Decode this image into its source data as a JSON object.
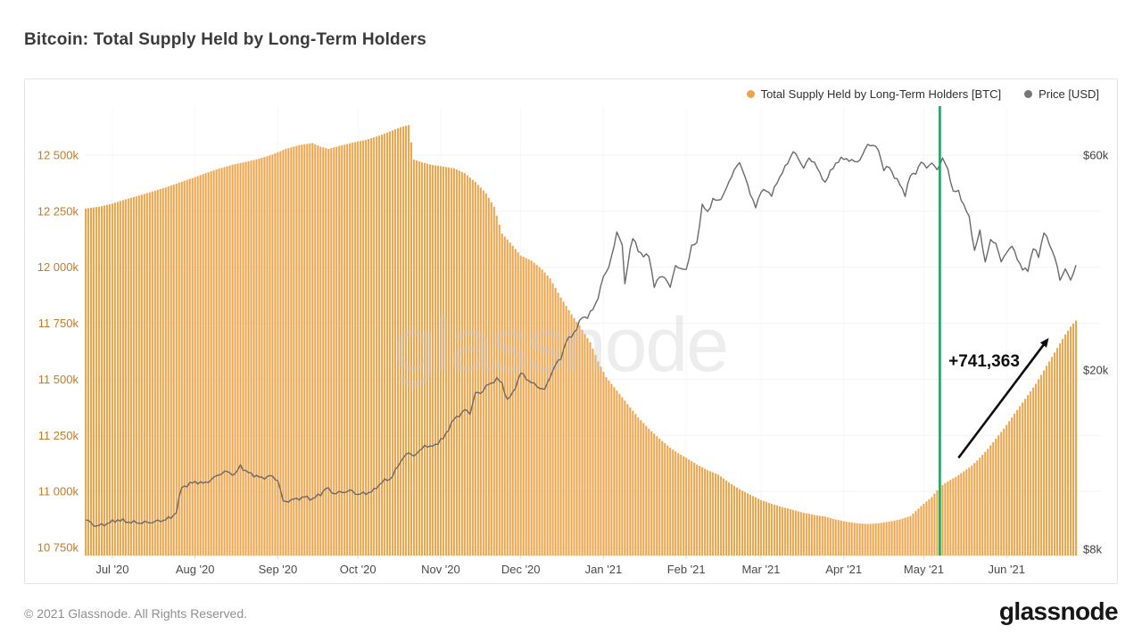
{
  "page": {
    "title": "Bitcoin: Total Supply Held by Long-Term Holders",
    "watermark": "glassnode",
    "footer_copyright": "© 2021 Glassnode. All Rights Reserved.",
    "brand_logo": "glassnode"
  },
  "chart_data": {
    "type": "bar",
    "title": "Bitcoin: Total Supply Held by Long-Term Holders",
    "legend_position": "top-right",
    "grid": "horizontal-faint",
    "x_axis": {
      "unit": "date",
      "total_days": 371,
      "tick_labels": [
        "Jul '20",
        "Aug '20",
        "Sep '20",
        "Oct '20",
        "Nov '20",
        "Dec '20",
        "Jan '21",
        "Feb '21",
        "Mar '21",
        "Apr '21",
        "May '21",
        "Jun '21"
      ],
      "tick_days": [
        10,
        41,
        72,
        102,
        133,
        163,
        194,
        225,
        253,
        284,
        314,
        345
      ]
    },
    "left_axis": {
      "title": "Total Supply Held by Long-Term Holders [BTC]",
      "tick_labels": [
        "12 500k",
        "12 250k",
        "12 000k",
        "11 750k",
        "11 500k",
        "11 250k",
        "11 000k",
        "10 750k"
      ],
      "tick_values": [
        12500,
        12250,
        12000,
        11750,
        11500,
        11250,
        11000,
        10750
      ],
      "units": "thousand BTC",
      "text_color": "#c07c2a"
    },
    "right_axis": {
      "title": "Price [USD]",
      "scale": "log",
      "tick_labels": [
        "$60k",
        "$20k",
        "$8k"
      ],
      "tick_values": [
        60,
        20,
        8
      ],
      "units": "thousand USD",
      "text_color": "#3f3f3f"
    },
    "series": [
      {
        "name": "Total Supply Held by Long-Term Holders [BTC]",
        "type": "bar",
        "axis": "left",
        "color": "#ecа64e",
        "color_hex": "#eca64e",
        "points_day_valueK": [
          [
            0,
            12262
          ],
          [
            5,
            12270
          ],
          [
            10,
            12284
          ],
          [
            15,
            12303
          ],
          [
            20,
            12320
          ],
          [
            25,
            12338
          ],
          [
            30,
            12356
          ],
          [
            35,
            12377
          ],
          [
            40,
            12398
          ],
          [
            45,
            12420
          ],
          [
            50,
            12440
          ],
          [
            55,
            12457
          ],
          [
            60,
            12470
          ],
          [
            65,
            12484
          ],
          [
            70,
            12503
          ],
          [
            75,
            12528
          ],
          [
            80,
            12545
          ],
          [
            85,
            12554
          ],
          [
            88,
            12538
          ],
          [
            91,
            12528
          ],
          [
            95,
            12541
          ],
          [
            100,
            12556
          ],
          [
            105,
            12568
          ],
          [
            110,
            12587
          ],
          [
            115,
            12610
          ],
          [
            118,
            12625
          ],
          [
            121,
            12634
          ],
          [
            123,
            12480
          ],
          [
            126,
            12468
          ],
          [
            130,
            12456
          ],
          [
            134,
            12449
          ],
          [
            138,
            12441
          ],
          [
            142,
            12420
          ],
          [
            146,
            12380
          ],
          [
            150,
            12330
          ],
          [
            153,
            12270
          ],
          [
            156,
            12150
          ],
          [
            159,
            12110
          ],
          [
            163,
            12052
          ],
          [
            167,
            12030
          ],
          [
            171,
            11990
          ],
          [
            174,
            11950
          ],
          [
            178,
            11865
          ],
          [
            182,
            11790
          ],
          [
            185,
            11740
          ],
          [
            189,
            11665
          ],
          [
            192,
            11580
          ],
          [
            195,
            11510
          ],
          [
            199,
            11450
          ],
          [
            203,
            11390
          ],
          [
            207,
            11330
          ],
          [
            211,
            11280
          ],
          [
            215,
            11235
          ],
          [
            219,
            11195
          ],
          [
            222,
            11170
          ],
          [
            225,
            11150
          ],
          [
            229,
            11120
          ],
          [
            233,
            11095
          ],
          [
            237,
            11075
          ],
          [
            241,
            11040
          ],
          [
            245,
            11010
          ],
          [
            249,
            10985
          ],
          [
            253,
            10962
          ],
          [
            257,
            10945
          ],
          [
            261,
            10930
          ],
          [
            265,
            10918
          ],
          [
            269,
            10905
          ],
          [
            273,
            10895
          ],
          [
            277,
            10888
          ],
          [
            281,
            10875
          ],
          [
            285,
            10865
          ],
          [
            289,
            10858
          ],
          [
            293,
            10855
          ],
          [
            297,
            10858
          ],
          [
            301,
            10865
          ],
          [
            305,
            10875
          ],
          [
            309,
            10890
          ],
          [
            313,
            10935
          ],
          [
            317,
            10975
          ],
          [
            320,
            11020
          ],
          [
            323,
            11045
          ],
          [
            326,
            11065
          ],
          [
            329,
            11090
          ],
          [
            332,
            11115
          ],
          [
            335,
            11150
          ],
          [
            338,
            11190
          ],
          [
            341,
            11235
          ],
          [
            344,
            11280
          ],
          [
            347,
            11330
          ],
          [
            350,
            11380
          ],
          [
            353,
            11430
          ],
          [
            356,
            11480
          ],
          [
            359,
            11540
          ],
          [
            362,
            11600
          ],
          [
            365,
            11660
          ],
          [
            367,
            11700
          ],
          [
            369,
            11735
          ],
          [
            371,
            11762
          ]
        ]
      },
      {
        "name": "Price [USD]",
        "type": "line",
        "axis": "right",
        "color_hex": "#6a6a6a",
        "points_day_priceK": [
          [
            0,
            9.3
          ],
          [
            4,
            9.0
          ],
          [
            8,
            9.12
          ],
          [
            12,
            9.3
          ],
          [
            16,
            9.2
          ],
          [
            20,
            9.16
          ],
          [
            24,
            9.18
          ],
          [
            28,
            9.25
          ],
          [
            32,
            9.4
          ],
          [
            34,
            9.7
          ],
          [
            36,
            11.0
          ],
          [
            38,
            11.1
          ],
          [
            41,
            11.3
          ],
          [
            44,
            11.2
          ],
          [
            47,
            11.4
          ],
          [
            50,
            11.75
          ],
          [
            53,
            11.9
          ],
          [
            56,
            11.7
          ],
          [
            58,
            12.3
          ],
          [
            60,
            11.9
          ],
          [
            63,
            11.7
          ],
          [
            66,
            11.5
          ],
          [
            69,
            11.65
          ],
          [
            72,
            11.4
          ],
          [
            74,
            10.2
          ],
          [
            76,
            10.25
          ],
          [
            79,
            10.35
          ],
          [
            82,
            10.45
          ],
          [
            85,
            10.35
          ],
          [
            88,
            10.6
          ],
          [
            90,
            10.95
          ],
          [
            93,
            10.65
          ],
          [
            96,
            10.7
          ],
          [
            99,
            10.8
          ],
          [
            102,
            10.6
          ],
          [
            105,
            10.65
          ],
          [
            108,
            10.8
          ],
          [
            111,
            11.3
          ],
          [
            114,
            11.45
          ],
          [
            117,
            12.2
          ],
          [
            119,
            12.85
          ],
          [
            121,
            13.05
          ],
          [
            123,
            12.95
          ],
          [
            125,
            13.15
          ],
          [
            127,
            13.65
          ],
          [
            129,
            13.45
          ],
          [
            132,
            13.8
          ],
          [
            134,
            14.1
          ],
          [
            136,
            14.85
          ],
          [
            138,
            15.55
          ],
          [
            140,
            15.9
          ],
          [
            142,
            16.3
          ],
          [
            144,
            16.05
          ],
          [
            146,
            17.75
          ],
          [
            148,
            17.8
          ],
          [
            150,
            18.4
          ],
          [
            152,
            18.7
          ],
          [
            154,
            19.15
          ],
          [
            156,
            18.65
          ],
          [
            158,
            17.15
          ],
          [
            160,
            17.75
          ],
          [
            163,
            19.7
          ],
          [
            165,
            19.2
          ],
          [
            167,
            18.75
          ],
          [
            170,
            18.3
          ],
          [
            172,
            18.05
          ],
          [
            174,
            19.4
          ],
          [
            176,
            20.5
          ],
          [
            178,
            21.3
          ],
          [
            180,
            23.1
          ],
          [
            182,
            23.85
          ],
          [
            184,
            24.7
          ],
          [
            186,
            26.3
          ],
          [
            188,
            26.2
          ],
          [
            190,
            27.3
          ],
          [
            192,
            29.0
          ],
          [
            194,
            32.2
          ],
          [
            196,
            34.0
          ],
          [
            198,
            37.5
          ],
          [
            199,
            40.7
          ],
          [
            201,
            38.0
          ],
          [
            202,
            30.8
          ],
          [
            204,
            37.3
          ],
          [
            205,
            39.4
          ],
          [
            207,
            36.8
          ],
          [
            209,
            36.0
          ],
          [
            211,
            35.8
          ],
          [
            213,
            30.8
          ],
          [
            215,
            32.1
          ],
          [
            217,
            32.3
          ],
          [
            219,
            30.4
          ],
          [
            221,
            34.3
          ],
          [
            223,
            33.4
          ],
          [
            225,
            33.5
          ],
          [
            227,
            37.6
          ],
          [
            229,
            38.3
          ],
          [
            231,
            46.4
          ],
          [
            233,
            44.8
          ],
          [
            235,
            47.9
          ],
          [
            237,
            47.4
          ],
          [
            239,
            49.2
          ],
          [
            241,
            52.1
          ],
          [
            243,
            55.9
          ],
          [
            245,
            57.5
          ],
          [
            247,
            54.1
          ],
          [
            249,
            48.9
          ],
          [
            251,
            46.3
          ],
          [
            253,
            49.6
          ],
          [
            255,
            50.4
          ],
          [
            257,
            48.7
          ],
          [
            259,
            52.4
          ],
          [
            261,
            54.9
          ],
          [
            263,
            57.8
          ],
          [
            265,
            61.2
          ],
          [
            267,
            59.0
          ],
          [
            269,
            56.3
          ],
          [
            271,
            58.9
          ],
          [
            273,
            58.0
          ],
          [
            275,
            54.5
          ],
          [
            277,
            52.3
          ],
          [
            279,
            55.0
          ],
          [
            281,
            57.6
          ],
          [
            283,
            58.8
          ],
          [
            285,
            59.0
          ],
          [
            287,
            58.2
          ],
          [
            289,
            58.0
          ],
          [
            291,
            59.8
          ],
          [
            293,
            63.5
          ],
          [
            295,
            63.1
          ],
          [
            297,
            61.6
          ],
          [
            299,
            55.7
          ],
          [
            301,
            56.5
          ],
          [
            303,
            53.8
          ],
          [
            305,
            51.7
          ],
          [
            307,
            49.1
          ],
          [
            309,
            54.0
          ],
          [
            311,
            55.0
          ],
          [
            313,
            57.8
          ],
          [
            315,
            56.6
          ],
          [
            317,
            57.4
          ],
          [
            319,
            55.9
          ],
          [
            321,
            58.9
          ],
          [
            323,
            55.9
          ],
          [
            325,
            49.7
          ],
          [
            327,
            49.9
          ],
          [
            329,
            46.4
          ],
          [
            331,
            43.6
          ],
          [
            333,
            36.8
          ],
          [
            335,
            40.6
          ],
          [
            337,
            34.8
          ],
          [
            339,
            38.7
          ],
          [
            341,
            38.4
          ],
          [
            343,
            34.6
          ],
          [
            345,
            36.7
          ],
          [
            347,
            37.6
          ],
          [
            349,
            35.5
          ],
          [
            351,
            33.4
          ],
          [
            353,
            33.4
          ],
          [
            355,
            37.3
          ],
          [
            357,
            35.8
          ],
          [
            359,
            40.5
          ],
          [
            361,
            38.1
          ],
          [
            363,
            35.8
          ],
          [
            365,
            31.6
          ],
          [
            367,
            33.7
          ],
          [
            369,
            31.5
          ],
          [
            371,
            34.3
          ]
        ]
      }
    ],
    "event_line": {
      "day": 320,
      "color_hex": "#1ca45f"
    },
    "annotation": {
      "label": "+741,363",
      "text_color": "#0d0d0d",
      "arrow": {
        "from_day": 327,
        "from_valueK": 11150,
        "to_day": 360,
        "to_valueK": 11672
      }
    },
    "watermark": "glassnode"
  },
  "legend": {
    "supply_label": "Total Supply Held by Long-Term Holders [BTC]",
    "supply_dot_color": "#f0a44b",
    "price_label": "Price [USD]",
    "price_dot_color": "#757575"
  }
}
